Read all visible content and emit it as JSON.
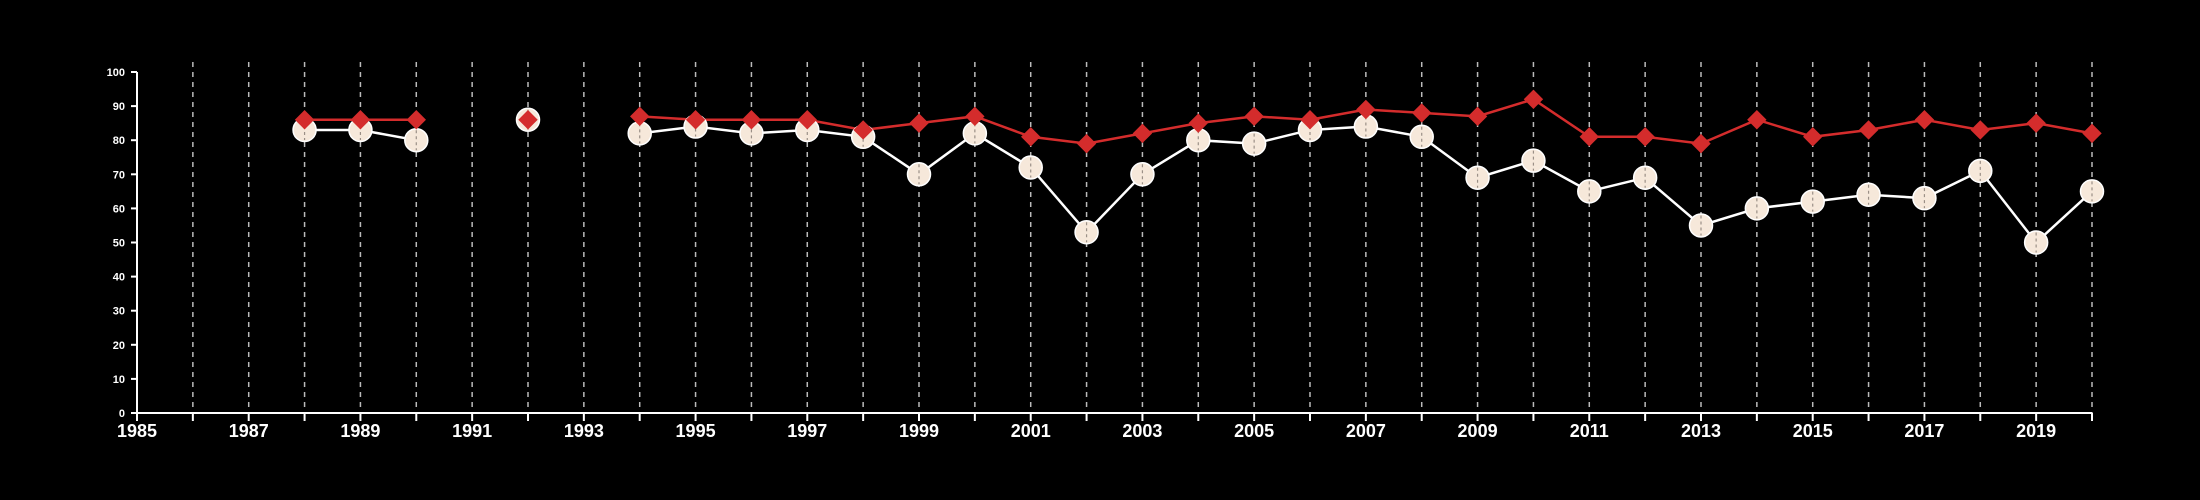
{
  "chart_data": {
    "type": "line",
    "title": "",
    "xlabel": "",
    "ylabel": "",
    "xlim": [
      1985,
      2020
    ],
    "ylim": [
      0,
      100
    ],
    "x_ticks": [
      1985,
      1987,
      1989,
      1991,
      1993,
      1995,
      1997,
      1999,
      2001,
      2003,
      2005,
      2007,
      2009,
      2011,
      2013,
      2015,
      2017,
      2019
    ],
    "y_ticks": [
      0,
      10,
      20,
      30,
      40,
      50,
      60,
      70,
      80,
      90,
      100
    ],
    "vertical_gridlines_each_year": true,
    "legend": false,
    "x": [
      1985,
      1986,
      1987,
      1988,
      1989,
      1990,
      1991,
      1992,
      1993,
      1994,
      1995,
      1996,
      1997,
      1998,
      1999,
      2000,
      2001,
      2002,
      2003,
      2004,
      2005,
      2006,
      2007,
      2008,
      2009,
      2010,
      2011,
      2012,
      2013,
      2014,
      2015,
      2016,
      2017,
      2018,
      2019,
      2020
    ],
    "series": [
      {
        "marker": "diamond",
        "color": "#d42c2c",
        "values": [
          null,
          null,
          null,
          86,
          86,
          86,
          null,
          86,
          null,
          87,
          86,
          86,
          86,
          83,
          85,
          87,
          81,
          79,
          82,
          85,
          87,
          86,
          89,
          88,
          87,
          92,
          81,
          81,
          79,
          86,
          81,
          83,
          86,
          83,
          85,
          82
        ]
      },
      {
        "marker": "circle",
        "color": "#f6e8da",
        "values": [
          null,
          null,
          null,
          83,
          83,
          80,
          null,
          86,
          null,
          82,
          84,
          82,
          83,
          81,
          70,
          82,
          72,
          53,
          70,
          80,
          79,
          83,
          84,
          81,
          69,
          74,
          65,
          69,
          55,
          60,
          62,
          64,
          63,
          71,
          50,
          65
        ]
      }
    ],
    "colors": {
      "background": "#000000",
      "axis": "#ffffff",
      "grid": "#bbbbbb",
      "line_circle": "#ffffff"
    }
  }
}
